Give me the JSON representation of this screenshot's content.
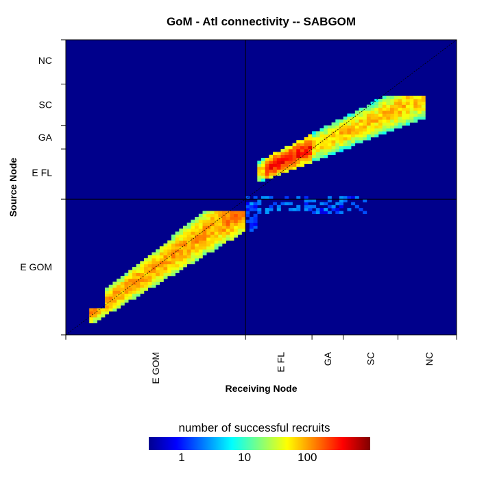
{
  "chart_data": {
    "type": "heatmap",
    "title": "GoM - Atl connectivity -- SABGOM",
    "xlabel": "Receiving Node",
    "ylabel": "Source Node",
    "x_ticks": [
      "E GOM",
      "E FL",
      "GA",
      "SC",
      "NC"
    ],
    "y_ticks": [
      "E GOM",
      "E FL",
      "GA",
      "SC",
      "NC"
    ],
    "node_range": [
      0,
      100
    ],
    "gom_atl_boundary": 46,
    "node_boundaries": [
      46,
      63,
      71,
      85,
      100
    ],
    "node_centers": [
      23,
      55,
      67,
      78,
      93
    ],
    "color_scale": {
      "label": "number of successful recruits",
      "scale": "log",
      "range": [
        0.3,
        1000
      ],
      "ticks": [
        {
          "label": "1",
          "value": 1
        },
        {
          "label": "10",
          "value": 10
        },
        {
          "label": "100",
          "value": 100
        }
      ],
      "colormap": "jet",
      "background": "#00008B"
    },
    "diagonal_line": true,
    "clusters": [
      {
        "region": "E GOM to E GOM",
        "x_range": [
          7,
          46
        ],
        "y_range": [
          5,
          42
        ],
        "peak_recruits": 150
      },
      {
        "region": "Atlantic to Atlantic",
        "x_range": [
          49,
          92
        ],
        "y_range": [
          55,
          80
        ],
        "peak_recruits": 500
      },
      {
        "region": "E GOM source to Atlantic receiver",
        "x_range": [
          46,
          77
        ],
        "y_range": [
          42,
          47
        ],
        "peak_recruits": 3
      }
    ]
  },
  "colors": {
    "background": "#00008B",
    "frame": "#000000"
  }
}
